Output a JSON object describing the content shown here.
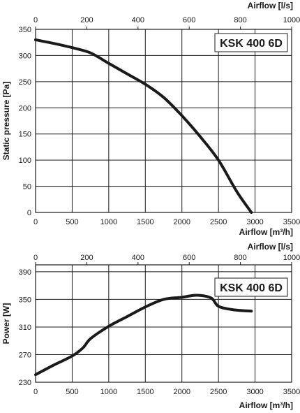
{
  "chart_data": [
    {
      "type": "line",
      "label": "KSK 400 6D",
      "xlabel": "Airflow [m³/h]",
      "x2label": "Airflow [l/s]",
      "ylabel": "Static pressure [Pa]",
      "xlim": [
        0,
        3500
      ],
      "x2lim": [
        0,
        1000
      ],
      "ylim": [
        0,
        350
      ],
      "xticks": [
        0,
        500,
        1000,
        1500,
        2000,
        2500,
        3000,
        3500
      ],
      "x2ticks": [
        0,
        200,
        400,
        600,
        800,
        1000
      ],
      "yticks": [
        0,
        50,
        100,
        150,
        200,
        250,
        300,
        350
      ],
      "grid": true,
      "series": [
        {
          "x": [
            0,
            250,
            500,
            750,
            1000,
            1250,
            1500,
            1750,
            2000,
            2250,
            2500,
            2750,
            2950
          ],
          "values": [
            330,
            323,
            315,
            305,
            285,
            265,
            245,
            220,
            185,
            145,
            100,
            40,
            0
          ]
        }
      ]
    },
    {
      "type": "line",
      "label": "KSK 400 6D",
      "xlabel": "Airflow [m³/h]",
      "x2label": "Airflow [l/s]",
      "ylabel": "Power [W]",
      "xlim": [
        0,
        3500
      ],
      "x2lim": [
        0,
        1000
      ],
      "ylim": [
        230,
        400
      ],
      "xticks": [
        0,
        500,
        1000,
        1500,
        2000,
        2500,
        3000,
        3500
      ],
      "x2ticks": [
        0,
        200,
        400,
        600,
        800,
        1000
      ],
      "yticks": [
        230,
        270,
        310,
        350,
        390
      ],
      "grid": true,
      "series": [
        {
          "x": [
            0,
            250,
            500,
            650,
            750,
            1000,
            1250,
            1500,
            1750,
            2000,
            2200,
            2400,
            2500,
            2700,
            2950
          ],
          "values": [
            241,
            255,
            268,
            280,
            293,
            311,
            325,
            339,
            350,
            353,
            356,
            352,
            340,
            335,
            333
          ]
        }
      ]
    }
  ]
}
